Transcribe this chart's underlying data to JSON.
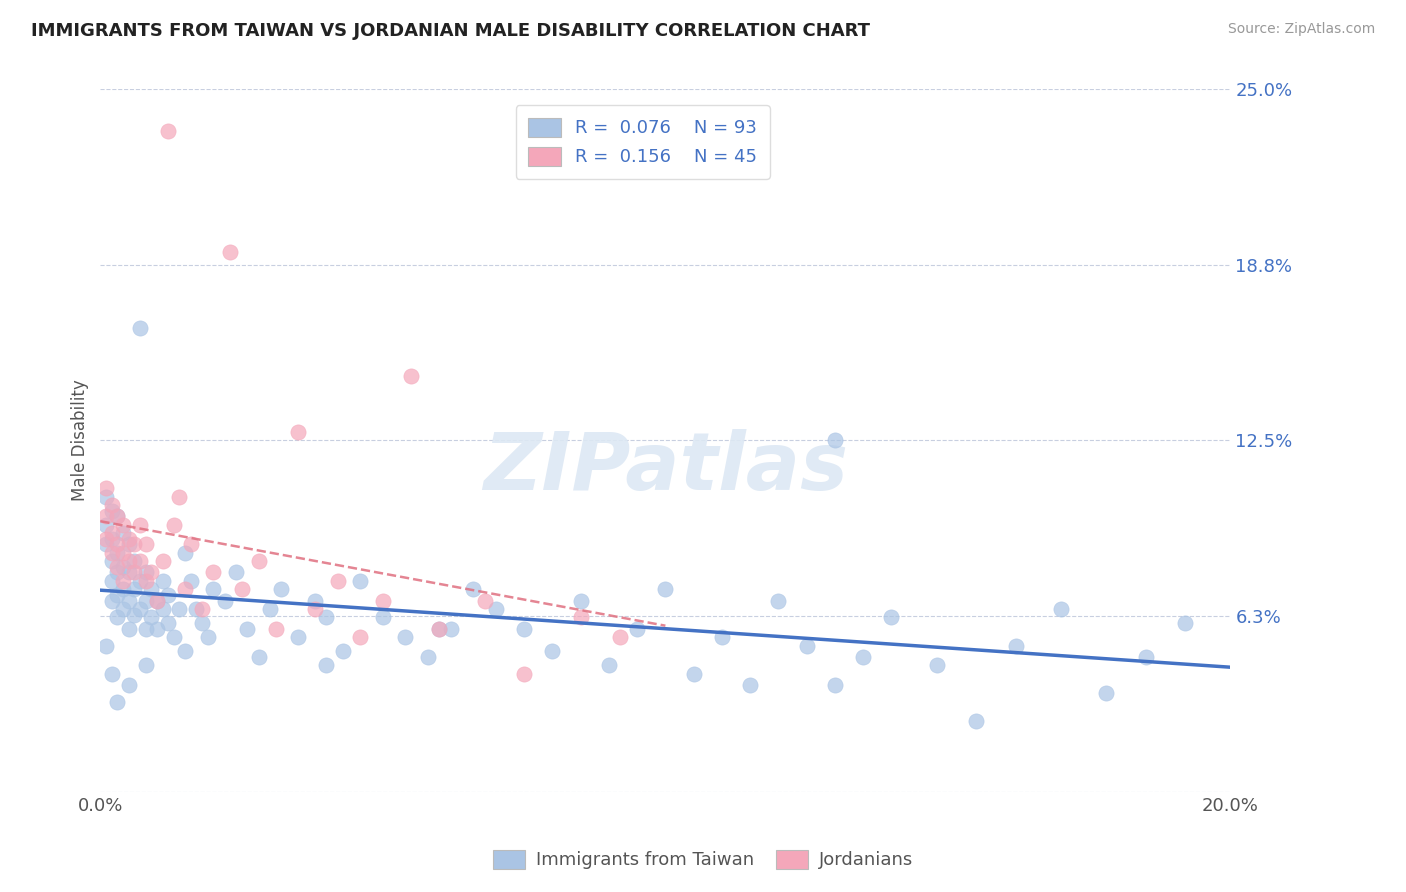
{
  "title": "IMMIGRANTS FROM TAIWAN VS JORDANIAN MALE DISABILITY CORRELATION CHART",
  "source": "Source: ZipAtlas.com",
  "ylabel_label": "Male Disability",
  "xmin": 0.0,
  "xmax": 0.2,
  "ymin": 0.0,
  "ymax": 0.25,
  "yticks": [
    0.0,
    0.0625,
    0.125,
    0.1875,
    0.25
  ],
  "ytick_labels": [
    "",
    "6.3%",
    "12.5%",
    "18.8%",
    "25.0%"
  ],
  "xtick_labels": [
    "0.0%",
    "20.0%"
  ],
  "color_taiwan": "#aac4e4",
  "color_jordan": "#f4a7ba",
  "line_color_taiwan": "#4472c4",
  "line_color_jordan": "#e07080",
  "background_color": "#ffffff",
  "grid_color": "#c8cfe0",
  "watermark": "ZIPatlas",
  "taiwan_x": [
    0.001,
    0.001,
    0.001,
    0.002,
    0.002,
    0.002,
    0.002,
    0.002,
    0.003,
    0.003,
    0.003,
    0.003,
    0.003,
    0.004,
    0.004,
    0.004,
    0.004,
    0.005,
    0.005,
    0.005,
    0.005,
    0.006,
    0.006,
    0.006,
    0.007,
    0.007,
    0.007,
    0.008,
    0.008,
    0.008,
    0.009,
    0.009,
    0.01,
    0.01,
    0.011,
    0.011,
    0.012,
    0.012,
    0.013,
    0.014,
    0.015,
    0.016,
    0.017,
    0.018,
    0.019,
    0.02,
    0.022,
    0.024,
    0.026,
    0.028,
    0.03,
    0.032,
    0.035,
    0.038,
    0.04,
    0.043,
    0.046,
    0.05,
    0.054,
    0.058,
    0.062,
    0.066,
    0.07,
    0.075,
    0.08,
    0.085,
    0.09,
    0.095,
    0.1,
    0.105,
    0.11,
    0.115,
    0.12,
    0.125,
    0.13,
    0.135,
    0.14,
    0.148,
    0.155,
    0.162,
    0.17,
    0.178,
    0.185,
    0.192,
    0.13,
    0.06,
    0.04,
    0.015,
    0.008,
    0.005,
    0.003,
    0.002,
    0.001
  ],
  "taiwan_y": [
    0.105,
    0.095,
    0.088,
    0.1,
    0.09,
    0.082,
    0.075,
    0.068,
    0.098,
    0.085,
    0.078,
    0.07,
    0.062,
    0.092,
    0.08,
    0.072,
    0.065,
    0.088,
    0.078,
    0.068,
    0.058,
    0.082,
    0.072,
    0.063,
    0.165,
    0.075,
    0.065,
    0.078,
    0.068,
    0.058,
    0.072,
    0.062,
    0.068,
    0.058,
    0.075,
    0.065,
    0.07,
    0.06,
    0.055,
    0.065,
    0.085,
    0.075,
    0.065,
    0.06,
    0.055,
    0.072,
    0.068,
    0.078,
    0.058,
    0.048,
    0.065,
    0.072,
    0.055,
    0.068,
    0.062,
    0.05,
    0.075,
    0.062,
    0.055,
    0.048,
    0.058,
    0.072,
    0.065,
    0.058,
    0.05,
    0.068,
    0.045,
    0.058,
    0.072,
    0.042,
    0.055,
    0.038,
    0.068,
    0.052,
    0.038,
    0.048,
    0.062,
    0.045,
    0.025,
    0.052,
    0.065,
    0.035,
    0.048,
    0.06,
    0.125,
    0.058,
    0.045,
    0.05,
    0.045,
    0.038,
    0.032,
    0.042,
    0.052
  ],
  "jordan_x": [
    0.001,
    0.001,
    0.001,
    0.002,
    0.002,
    0.002,
    0.003,
    0.003,
    0.003,
    0.004,
    0.004,
    0.004,
    0.005,
    0.005,
    0.006,
    0.006,
    0.007,
    0.007,
    0.008,
    0.008,
    0.009,
    0.01,
    0.011,
    0.012,
    0.013,
    0.014,
    0.015,
    0.016,
    0.018,
    0.02,
    0.023,
    0.025,
    0.028,
    0.031,
    0.035,
    0.038,
    0.042,
    0.046,
    0.05,
    0.055,
    0.06,
    0.068,
    0.075,
    0.085,
    0.092
  ],
  "jordan_y": [
    0.108,
    0.098,
    0.09,
    0.102,
    0.092,
    0.085,
    0.098,
    0.088,
    0.08,
    0.095,
    0.085,
    0.075,
    0.09,
    0.082,
    0.088,
    0.078,
    0.082,
    0.095,
    0.075,
    0.088,
    0.078,
    0.068,
    0.082,
    0.235,
    0.095,
    0.105,
    0.072,
    0.088,
    0.065,
    0.078,
    0.192,
    0.072,
    0.082,
    0.058,
    0.128,
    0.065,
    0.075,
    0.055,
    0.068,
    0.148,
    0.058,
    0.068,
    0.042,
    0.062,
    0.055
  ]
}
